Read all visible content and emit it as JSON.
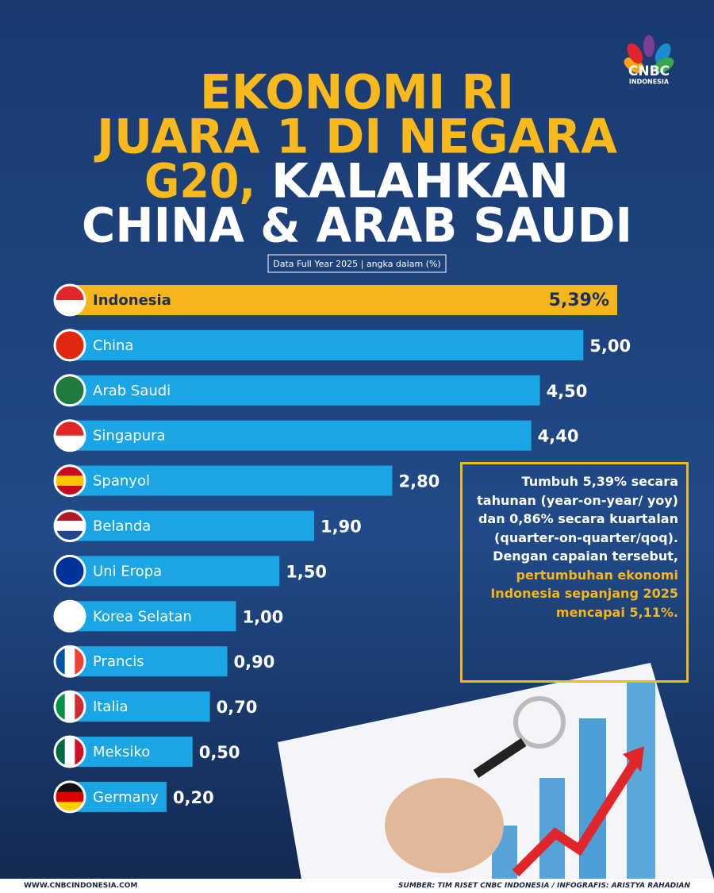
{
  "chart_data": {
    "type": "bar",
    "orientation": "horizontal",
    "title": [
      {
        "text": "EKONOMI RI",
        "color": "#f9b81b"
      },
      {
        "text": "JUARA 1 DI NEGARA",
        "color": "#f9b81b"
      },
      {
        "text": "G20,",
        "color": "#f9b81b"
      },
      {
        "text": "KALAHKAN",
        "color": "#ffffff"
      },
      {
        "text": "CHINA & ARAB SAUDI",
        "color": "#ffffff"
      }
    ],
    "subtitle": "Data Full Year 2025 | angka dalam (%)",
    "categories": [
      "Indonesia",
      "China",
      "Arab Saudi",
      "Singapura",
      "Spanyol",
      "Belanda",
      "Uni Eropa",
      "Korea Selatan",
      "Prancis",
      "Italia",
      "Meksiko",
      "Germany"
    ],
    "values": [
      5.39,
      5.0,
      4.5,
      4.4,
      2.8,
      1.9,
      1.5,
      1.0,
      0.9,
      0.7,
      0.5,
      0.2
    ],
    "value_labels": [
      "5,39%",
      "5,00",
      "4,50",
      "4,40",
      "2,80",
      "1,90",
      "1,50",
      "1,00",
      "0,90",
      "0,70",
      "0,50",
      "0,20"
    ],
    "colors": [
      "#f7b51c",
      "#1aa6e4",
      "#1aa6e4",
      "#1aa6e4",
      "#1aa6e4",
      "#1aa6e4",
      "#1aa6e4",
      "#1aa6e4",
      "#1aa6e4",
      "#1aa6e4",
      "#1aa6e4",
      "#1aa6e4"
    ]
  },
  "logo": {
    "name": "CNBC",
    "region": "INDONESIA"
  },
  "note": {
    "text": "Tumbuh 5,39% secara tahunan (year-on-year/ yoy) dan 0,86% secara kuartalan (quarter-on-quarter/qoq). Dengan capaian tersebut,",
    "highlight": "pertumbuhan ekonomi Indonesia sepanjang 2025 mencapai 5,11%."
  },
  "footer": {
    "website": "WWW.CNBCINDONESIA.COM",
    "credit": "SUMBER: TIM RISET CNBC INDONESIA / INFOGRAFIS: ARISTYA RAHADIAN"
  }
}
